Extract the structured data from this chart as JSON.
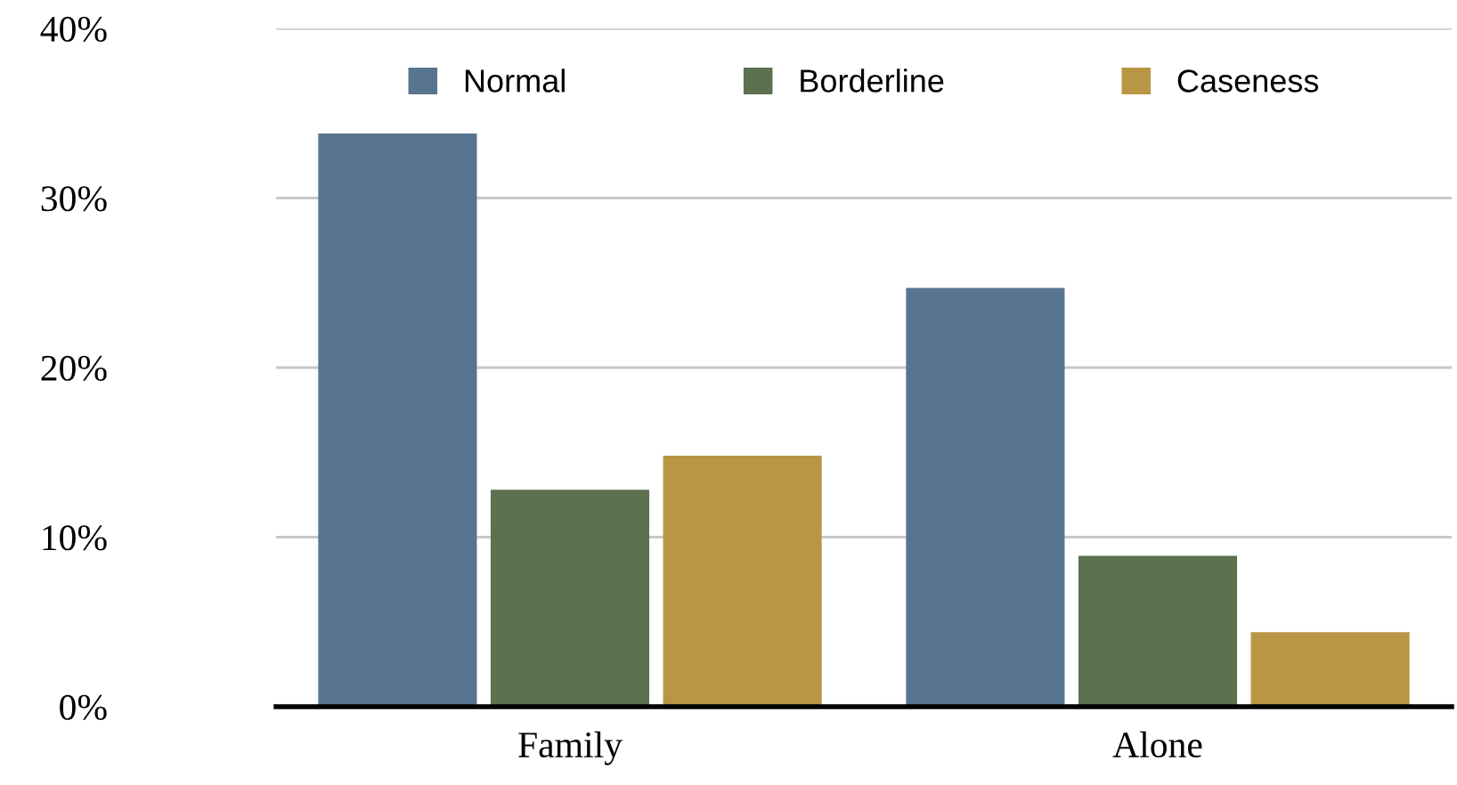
{
  "chart_data": {
    "type": "bar",
    "categories": [
      "Family",
      "Alone"
    ],
    "series": [
      {
        "name": "Normal",
        "color": "#57758f",
        "values": [
          33.8,
          24.7
        ]
      },
      {
        "name": "Borderline",
        "color": "#5c7150",
        "values": [
          12.8,
          8.9
        ]
      },
      {
        "name": "Caseness",
        "color": "#b99644",
        "values": [
          14.8,
          4.4
        ]
      }
    ],
    "ylim": [
      0,
      40
    ],
    "yticks": [
      {
        "value": 0,
        "label": "0%"
      },
      {
        "value": 10,
        "label": "10%"
      },
      {
        "value": 20,
        "label": "20%"
      },
      {
        "value": 30,
        "label": "30%"
      },
      {
        "value": 40,
        "label": "40%"
      }
    ],
    "grid": "y",
    "legend": "top"
  }
}
